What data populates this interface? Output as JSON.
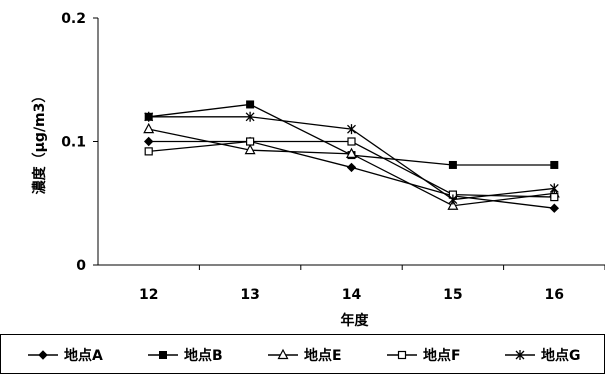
{
  "chart_data": {
    "type": "line",
    "title": "",
    "xlabel": "年度",
    "ylabel": "濃度（μg/m3）",
    "categories": [
      "12",
      "13",
      "14",
      "15",
      "16"
    ],
    "ylim": [
      0,
      0.2
    ],
    "yticks": [
      "0",
      "0.1",
      "0.2"
    ],
    "grid": false,
    "legend_position": "bottom",
    "series": [
      {
        "name": "地点A",
        "marker": "diamond-filled",
        "values": [
          0.1,
          0.1,
          0.079,
          0.056,
          0.046
        ]
      },
      {
        "name": "地点B",
        "marker": "square-filled",
        "values": [
          0.12,
          0.13,
          0.089,
          0.081,
          0.081
        ]
      },
      {
        "name": "地点E",
        "marker": "triangle-open",
        "values": [
          0.11,
          0.093,
          0.09,
          0.048,
          0.058
        ]
      },
      {
        "name": "地点F",
        "marker": "square-open",
        "values": [
          0.092,
          0.1,
          0.1,
          0.057,
          0.055
        ]
      },
      {
        "name": "地点G",
        "marker": "star",
        "values": [
          0.12,
          0.12,
          0.11,
          0.053,
          0.062
        ]
      }
    ]
  }
}
